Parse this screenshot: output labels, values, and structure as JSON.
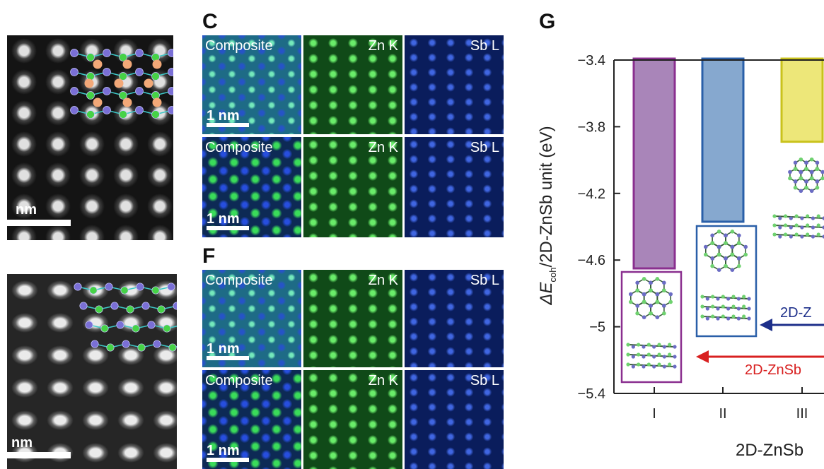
{
  "stem_images": [
    {
      "scale_label": "nm"
    },
    {
      "scale_label": "nm"
    }
  ],
  "panels": [
    {
      "letter": "C",
      "rows": [
        {
          "labels": [
            "Composite",
            "Zn K",
            "Sb L"
          ],
          "scale_label": "1 nm"
        },
        {
          "labels": [
            "Composite",
            "Zn K",
            "Sb L"
          ],
          "scale_label": "1 nm"
        }
      ]
    },
    {
      "letter": "F",
      "rows": [
        {
          "labels": [
            "Composite",
            "Zn K",
            "Sb L"
          ],
          "scale_label": "1 nm"
        },
        {
          "labels": [
            "Composite",
            "Zn K",
            "Sb L"
          ],
          "scale_label": "1 nm"
        }
      ]
    }
  ],
  "panel_g_letter": "G",
  "chart_data": {
    "type": "bar",
    "categories": [
      "I",
      "II",
      "III"
    ],
    "values": [
      -4.65,
      -4.37,
      -3.89
    ],
    "baseline": -3.4,
    "ylim": [
      -5.4,
      -3.4
    ],
    "yticks": [
      "-3.4",
      "-3.8",
      "-4.2",
      "-4.6",
      "-5",
      "-5.4"
    ],
    "ylabel_prefix": "ΔE",
    "ylabel_sub": "coh",
    "ylabel_suffix": "/2D-ZnSb unit (eV)",
    "xlabel": "2D-ZnSb",
    "annotations": [
      "2D-Z",
      "2D-ZnSb"
    ],
    "colors": {
      "I": {
        "fill": "#a985b9",
        "stroke": "#8a2f8f"
      },
      "II": {
        "fill": "#86a8cf",
        "stroke": "#2a5fa8"
      },
      "III": {
        "fill": "#ede779",
        "stroke": "#c9c21c"
      },
      "arrow_blue": "#1d2f8a",
      "arrow_red": "#d82020"
    }
  }
}
